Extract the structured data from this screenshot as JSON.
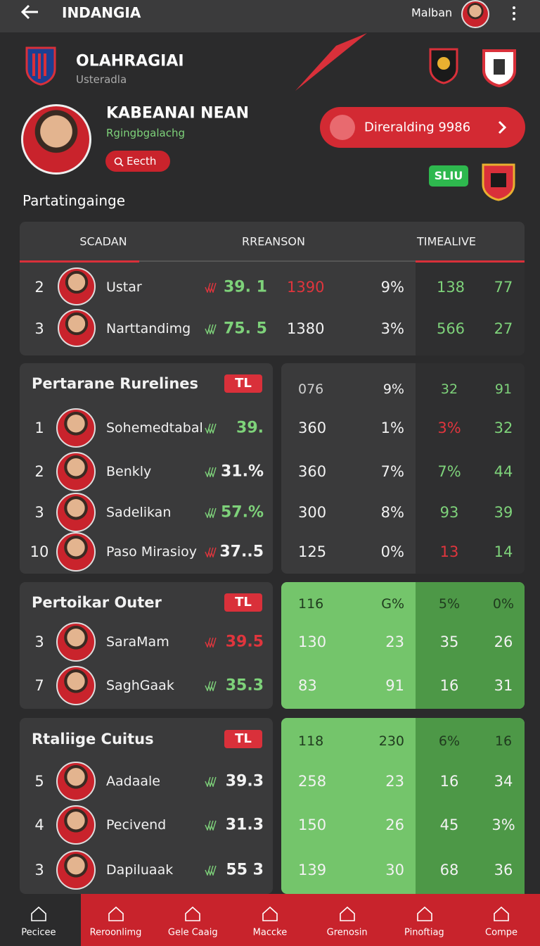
{
  "header": {
    "title": "INDANGIA",
    "user": "Malban"
  },
  "club": {
    "name": "OLAHRAGIAI",
    "subtitle": "Usteradla"
  },
  "profile": {
    "name": "KABEANAI NEAN",
    "tagline": "Rgingbgalachg",
    "button": "Eecth",
    "section_label": "Partatingainge",
    "action": "Direralding 9986",
    "badge": "SLIU"
  },
  "table": {
    "columns": [
      "SCADAN",
      "RREANSON",
      "TIMEALIVE"
    ],
    "rows": [
      [
        "2",
        "Ustar",
        "39. 1",
        "1390",
        "9%",
        "138",
        "77"
      ],
      [
        "3",
        "Narttandimg",
        "75. 5",
        "1380",
        "3%",
        "566",
        "27"
      ]
    ]
  },
  "groups": [
    {
      "title": "Pertarane Rurelines",
      "tag": "TL",
      "summary": [
        "076",
        "9%",
        "32",
        "91"
      ],
      "rows": [
        [
          "1",
          "Sohemedtabal",
          "39.",
          "360",
          "1%",
          "3%",
          "32"
        ],
        [
          "2",
          "Benkly",
          "31.%",
          "360",
          "7%",
          "7%",
          "44"
        ],
        [
          "3",
          "Sadelikan",
          "57.%",
          "300",
          "8%",
          "93",
          "39"
        ],
        [
          "10",
          "Paso Mirasioy",
          "37..5",
          "125",
          "0%",
          "13",
          "14"
        ]
      ]
    },
    {
      "title": "Pertoikar Outer",
      "tag": "TL",
      "summary": [
        "116",
        "G%",
        "5%",
        "0%"
      ],
      "rows": [
        [
          "3",
          "SaraMam",
          "39.5",
          "130",
          "23",
          "35",
          "26"
        ],
        [
          "7",
          "SaghGaak",
          "35.3",
          "83",
          "91",
          "16",
          "31"
        ]
      ]
    },
    {
      "title": "Rtaliige Cuitus",
      "tag": "TL",
      "summary": [
        "118",
        "230",
        "6%",
        "16"
      ],
      "rows": [
        [
          "5",
          "Aadaale",
          "39.3",
          "258",
          "23",
          "16",
          "34"
        ],
        [
          "4",
          "Pecivend",
          "31.3",
          "150",
          "26",
          "45",
          "3%"
        ],
        [
          "3",
          "Dapiluaak",
          "55 3",
          "139",
          "30",
          "68",
          "36"
        ]
      ]
    }
  ],
  "nav": [
    "Pecicee",
    "Reroonlimg",
    "Gele Caaig",
    "Maccke",
    "Grenosin",
    "Pinoftiag",
    "Compe"
  ]
}
